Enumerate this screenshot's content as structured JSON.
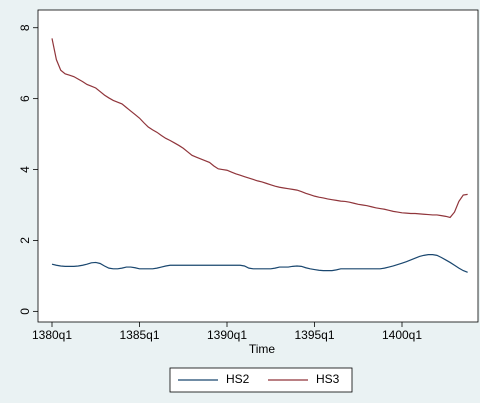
{
  "chart_data": {
    "type": "line",
    "xlabel": "Time",
    "categories": [
      "1380q1",
      null,
      null,
      null,
      null,
      null,
      null,
      null,
      null,
      null,
      null,
      null,
      null,
      null,
      null,
      null,
      null,
      null,
      null,
      null,
      "1385q1",
      null,
      null,
      null,
      null,
      null,
      null,
      null,
      null,
      null,
      null,
      null,
      null,
      null,
      null,
      null,
      null,
      null,
      null,
      null,
      "1390q1",
      null,
      null,
      null,
      null,
      null,
      null,
      null,
      null,
      null,
      null,
      null,
      null,
      null,
      null,
      null,
      null,
      null,
      null,
      null,
      "1395q1",
      null,
      null,
      null,
      null,
      null,
      null,
      null,
      null,
      null,
      null,
      null,
      null,
      null,
      null,
      null,
      null,
      null,
      null,
      null,
      "1400q1",
      null,
      null,
      null,
      null,
      null,
      null,
      null,
      null,
      null,
      null,
      null,
      null,
      null,
      null,
      null
    ],
    "series": [
      {
        "name": "HS2",
        "color": "#1a476f",
        "values": [
          1.33,
          1.3,
          1.28,
          1.27,
          1.27,
          1.27,
          1.28,
          1.3,
          1.33,
          1.37,
          1.38,
          1.35,
          1.28,
          1.22,
          1.2,
          1.2,
          1.22,
          1.25,
          1.25,
          1.23,
          1.2,
          1.2,
          1.2,
          1.2,
          1.22,
          1.25,
          1.28,
          1.3,
          1.3,
          1.3,
          1.3,
          1.3,
          1.3,
          1.3,
          1.3,
          1.3,
          1.3,
          1.3,
          1.3,
          1.3,
          1.3,
          1.3,
          1.3,
          1.3,
          1.28,
          1.22,
          1.2,
          1.2,
          1.2,
          1.2,
          1.2,
          1.22,
          1.25,
          1.25,
          1.25,
          1.27,
          1.28,
          1.27,
          1.23,
          1.2,
          1.18,
          1.16,
          1.15,
          1.15,
          1.15,
          1.17,
          1.2,
          1.2,
          1.2,
          1.2,
          1.2,
          1.2,
          1.2,
          1.2,
          1.2,
          1.2,
          1.22,
          1.25,
          1.28,
          1.32,
          1.36,
          1.4,
          1.45,
          1.5,
          1.55,
          1.58,
          1.6,
          1.6,
          1.58,
          1.52,
          1.45,
          1.38,
          1.3,
          1.22,
          1.15,
          1.1
        ]
      },
      {
        "name": "HS3",
        "color": "#90353b",
        "values": [
          7.7,
          7.1,
          6.8,
          6.7,
          6.66,
          6.62,
          6.55,
          6.48,
          6.4,
          6.35,
          6.3,
          6.2,
          6.1,
          6.02,
          5.95,
          5.9,
          5.85,
          5.75,
          5.65,
          5.55,
          5.45,
          5.32,
          5.2,
          5.12,
          5.05,
          4.96,
          4.88,
          4.82,
          4.75,
          4.68,
          4.6,
          4.5,
          4.4,
          4.35,
          4.3,
          4.25,
          4.2,
          4.1,
          4.02,
          4.0,
          3.98,
          3.93,
          3.88,
          3.84,
          3.8,
          3.76,
          3.72,
          3.68,
          3.65,
          3.61,
          3.57,
          3.53,
          3.5,
          3.48,
          3.46,
          3.44,
          3.42,
          3.38,
          3.33,
          3.29,
          3.25,
          3.22,
          3.2,
          3.17,
          3.15,
          3.13,
          3.11,
          3.1,
          3.08,
          3.05,
          3.02,
          3.0,
          2.98,
          2.95,
          2.92,
          2.9,
          2.88,
          2.85,
          2.82,
          2.8,
          2.78,
          2.77,
          2.76,
          2.76,
          2.75,
          2.74,
          2.73,
          2.72,
          2.72,
          2.7,
          2.68,
          2.65,
          2.8,
          3.1,
          3.28,
          3.3
        ]
      }
    ],
    "ylim": [
      -0.3,
      8.5
    ],
    "yticks": [
      0,
      2,
      4,
      6,
      8
    ],
    "grid": false
  }
}
